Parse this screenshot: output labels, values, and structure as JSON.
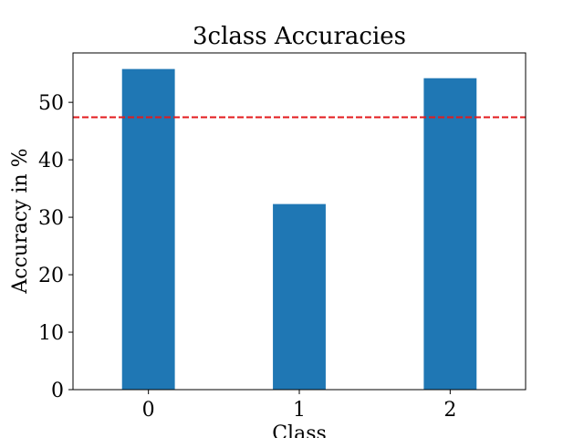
{
  "chart_data": {
    "type": "bar",
    "title": "3class Accuracies",
    "xlabel": "Class",
    "ylabel": "Accuracy in %",
    "categories": [
      "0",
      "1",
      "2"
    ],
    "values": [
      55.8,
      32.3,
      54.2
    ],
    "reference_line": {
      "value": 47.4,
      "style": "dashed",
      "color": "#e31a1c"
    },
    "yticks": [
      0,
      10,
      20,
      30,
      40,
      50
    ],
    "ylim": [
      0,
      58.6
    ],
    "xlim": [
      -0.5,
      2.5
    ],
    "bar_color": "#1f77b4",
    "grid": false
  }
}
